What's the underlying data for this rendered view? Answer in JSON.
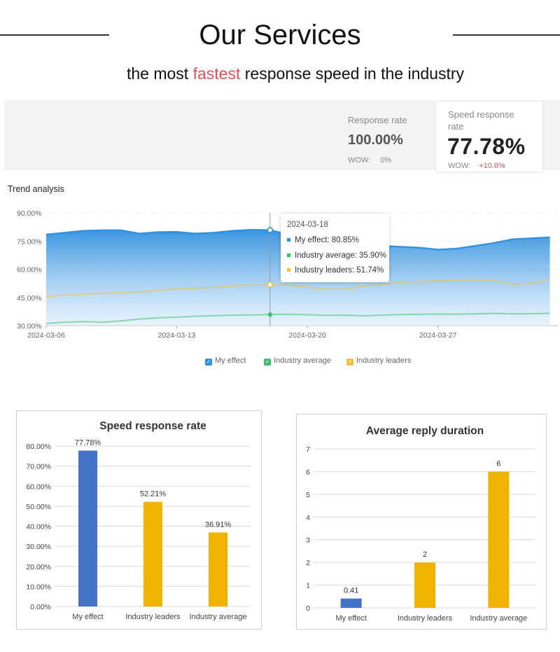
{
  "header": {
    "title": "Our Services",
    "subtitle_before": "the most ",
    "subtitle_highlight": "fastest",
    "subtitle_after": " response speed in the industry"
  },
  "metrics": {
    "response_rate": {
      "label": "Response rate",
      "value": "100.00%",
      "wow_label": "WOW:",
      "wow_value": "0%"
    },
    "speed_response_rate": {
      "label_line1": "Speed response",
      "label_line2": "rate",
      "value": "77.78%",
      "wow_label": "WOW:",
      "wow_value": "+10.6%"
    }
  },
  "trend": {
    "title": "Trend analysis",
    "tooltip": {
      "date": "2024-03-18",
      "rows": [
        "My effect: 80.85%",
        "Industry average: 35.90%",
        "Industry leaders: 51.74%"
      ]
    },
    "legend": [
      "My effect",
      "Industry average",
      "Industry leaders"
    ]
  },
  "colors": {
    "my_effect": "#2f8fde",
    "industry_average": "#3fbf6b",
    "industry_leaders": "#f2c230",
    "bar_blue": "#4472c4",
    "bar_yellow": "#f0b400",
    "highlight": "#e05259"
  },
  "chart_data": [
    {
      "type": "area",
      "title": "Trend analysis",
      "x_ticks": [
        "2024-03-06",
        "2024-03-13",
        "2024-03-20",
        "2024-03-27"
      ],
      "y_ticks": [
        "90.00%",
        "75.00%",
        "60.00%",
        "45.00%",
        "30.00%"
      ],
      "ylim": [
        30,
        90
      ],
      "x": [
        "2024-03-06",
        "2024-03-07",
        "2024-03-08",
        "2024-03-09",
        "2024-03-10",
        "2024-03-11",
        "2024-03-12",
        "2024-03-13",
        "2024-03-14",
        "2024-03-15",
        "2024-03-16",
        "2024-03-17",
        "2024-03-18",
        "2024-03-19",
        "2024-03-20",
        "2024-03-21",
        "2024-03-22",
        "2024-03-23",
        "2024-03-24",
        "2024-03-25",
        "2024-03-26",
        "2024-03-27",
        "2024-03-28",
        "2024-03-29",
        "2024-03-30",
        "2024-03-31",
        "2024-04-01",
        "2024-04-02"
      ],
      "series": [
        {
          "name": "My effect",
          "values": [
            78.5,
            79.5,
            80.5,
            80.8,
            80.8,
            79.0,
            79.8,
            79.9,
            79.0,
            79.5,
            80.5,
            81.0,
            80.85,
            78.5,
            76.0,
            74.0,
            73.0,
            72.5,
            72.5,
            72.0,
            71.5,
            70.5,
            71.0,
            72.5,
            74.0,
            76.0,
            76.5,
            77.0
          ]
        },
        {
          "name": "Industry average",
          "values": [
            31.2,
            31.8,
            32.2,
            31.8,
            32.5,
            33.5,
            34.2,
            34.5,
            35.0,
            35.3,
            35.6,
            35.7,
            35.9,
            36.1,
            35.8,
            35.5,
            35.6,
            35.2,
            35.6,
            35.9,
            36.0,
            36.2,
            36.1,
            36.3,
            36.5,
            36.3,
            36.4,
            36.5
          ]
        },
        {
          "name": "Industry leaders",
          "values": [
            45.5,
            46.2,
            46.8,
            47.2,
            47.5,
            48.0,
            48.8,
            49.5,
            50.0,
            50.4,
            51.2,
            51.6,
            51.74,
            51.5,
            50.5,
            49.5,
            49.5,
            51.0,
            52.0,
            53.0,
            53.5,
            53.8,
            54.0,
            54.3,
            54.0,
            52.0,
            52.5,
            54.5
          ]
        }
      ],
      "legend": "bottom"
    },
    {
      "type": "bar",
      "title": "Speed response rate",
      "categories": [
        "My effect",
        "Industry leaders",
        "Industry average"
      ],
      "values": [
        77.78,
        52.21,
        36.91
      ],
      "value_labels": [
        "77.78%",
        "52.21%",
        "36.91%"
      ],
      "y_ticks": [
        "80.00%",
        "70.00%",
        "60.00%",
        "50.00%",
        "40.00%",
        "30.00%",
        "20.00%",
        "10.00%",
        "0.00%"
      ],
      "ylim": [
        0,
        80
      ],
      "grid": true
    },
    {
      "type": "bar",
      "title": "Average reply duration",
      "categories": [
        "My effect",
        "Industry leaders",
        "Industry average"
      ],
      "values": [
        0.41,
        2,
        6
      ],
      "value_labels": [
        "0.41",
        "2",
        "6"
      ],
      "y_ticks": [
        "7",
        "6",
        "5",
        "4",
        "3",
        "2",
        "1",
        "0"
      ],
      "ylim": [
        0,
        7
      ],
      "grid": true
    }
  ]
}
